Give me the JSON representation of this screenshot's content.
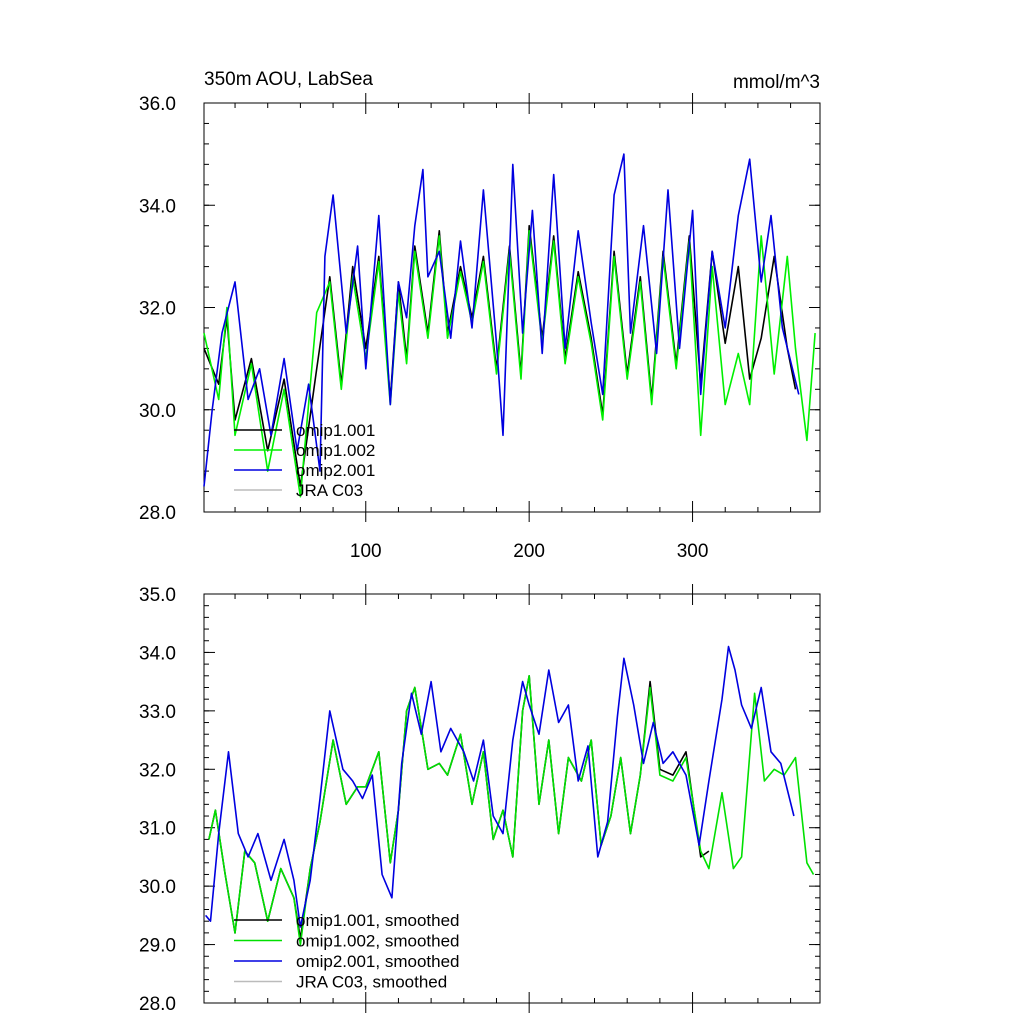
{
  "chart_data": [
    {
      "type": "line",
      "title": "350m AOU, LabSea",
      "units": "mmol/m^3",
      "xlim": [
        1,
        378
      ],
      "ylim": [
        28.0,
        36.0
      ],
      "xticks": [
        100,
        200,
        300
      ],
      "xtick_labels": [
        "100",
        "200",
        "300"
      ],
      "yticks": [
        28.0,
        30.0,
        32.0,
        34.0,
        36.0
      ],
      "ytick_labels": [
        "28.0",
        "30.0",
        "32.0",
        "34.0",
        "36.0"
      ],
      "legend": [
        "omip1.001",
        "omip1.002",
        "omip2.001",
        "JRA C03"
      ],
      "series": [
        {
          "name": "omip1.001",
          "color": "#000000",
          "x": [
            1,
            10,
            15,
            20,
            30,
            40,
            50,
            60,
            70,
            78,
            85,
            92,
            100,
            108,
            115,
            120,
            125,
            130,
            138,
            145,
            150,
            158,
            165,
            172,
            180,
            188,
            195,
            200,
            208,
            215,
            222,
            230,
            238,
            245,
            252,
            260,
            268,
            275,
            282,
            290,
            298,
            305,
            312,
            320,
            328,
            335,
            342,
            350,
            358,
            363
          ],
          "values": [
            31.2,
            30.5,
            31.8,
            29.8,
            31.0,
            29.2,
            30.6,
            28.5,
            30.8,
            32.6,
            30.5,
            32.8,
            31.2,
            33.0,
            30.2,
            32.5,
            31.0,
            33.2,
            31.5,
            33.5,
            31.5,
            32.8,
            31.8,
            33.0,
            30.8,
            33.2,
            30.7,
            33.6,
            31.4,
            33.4,
            31.0,
            32.7,
            31.4,
            29.9,
            33.1,
            30.7,
            32.6,
            30.2,
            33.1,
            30.9,
            33.4,
            30.5,
            33.1,
            31.3,
            32.8,
            30.6,
            31.4,
            33.0,
            31.2,
            30.4
          ]
        },
        {
          "name": "omip1.002",
          "color": "#00f000",
          "x": [
            1,
            10,
            15,
            20,
            30,
            40,
            50,
            60,
            70,
            78,
            85,
            92,
            100,
            108,
            115,
            120,
            125,
            130,
            138,
            145,
            150,
            158,
            165,
            172,
            180,
            188,
            195,
            200,
            208,
            215,
            222,
            230,
            238,
            245,
            252,
            260,
            268,
            275,
            282,
            290,
            298,
            305,
            312,
            320,
            328,
            335,
            342,
            350,
            358,
            363,
            370,
            375
          ],
          "values": [
            31.5,
            30.2,
            32.0,
            29.5,
            30.9,
            28.8,
            30.4,
            28.3,
            31.9,
            32.5,
            30.4,
            32.6,
            31.0,
            32.9,
            30.1,
            32.3,
            30.9,
            33.1,
            31.4,
            33.4,
            31.4,
            32.7,
            31.7,
            32.9,
            30.7,
            33.1,
            30.6,
            33.5,
            31.3,
            33.3,
            30.9,
            32.6,
            31.3,
            29.8,
            33.0,
            30.6,
            32.5,
            30.1,
            33.0,
            30.8,
            33.3,
            29.5,
            32.8,
            30.1,
            31.1,
            30.1,
            33.4,
            30.7,
            33.0,
            31.2,
            29.4,
            31.5
          ]
        },
        {
          "name": "omip2.001",
          "color": "#0000e0",
          "x": [
            1,
            6,
            12,
            20,
            28,
            35,
            42,
            50,
            58,
            65,
            72,
            75,
            80,
            88,
            95,
            100,
            108,
            115,
            120,
            125,
            130,
            135,
            138,
            145,
            152,
            158,
            165,
            172,
            180,
            184,
            190,
            196,
            202,
            208,
            215,
            222,
            230,
            238,
            245,
            252,
            258,
            262,
            270,
            278,
            285,
            292,
            300,
            305,
            312,
            320,
            328,
            335,
            342,
            348,
            355,
            365
          ],
          "values": [
            28.5,
            30.0,
            31.5,
            32.5,
            30.2,
            30.8,
            29.5,
            31.0,
            29.2,
            30.5,
            28.8,
            33.0,
            34.2,
            31.5,
            33.2,
            30.8,
            33.8,
            30.1,
            32.5,
            31.8,
            33.6,
            34.7,
            32.6,
            33.1,
            31.4,
            33.3,
            31.6,
            34.3,
            31.3,
            29.5,
            34.8,
            31.5,
            33.9,
            31.1,
            34.6,
            31.2,
            33.5,
            31.7,
            30.3,
            34.2,
            35.0,
            31.5,
            33.6,
            31.1,
            34.3,
            31.2,
            33.9,
            30.3,
            33.1,
            31.6,
            33.8,
            34.9,
            32.5,
            33.8,
            31.6,
            30.3
          ]
        },
        {
          "name": "JRA C03",
          "color": "#bbbbbb",
          "x": [],
          "values": []
        }
      ]
    },
    {
      "type": "line",
      "title": "",
      "units": "",
      "xlim": [
        1,
        378
      ],
      "ylim": [
        28.0,
        35.0
      ],
      "xticks": [
        100,
        200,
        300
      ],
      "xtick_labels": [
        "",
        "",
        ""
      ],
      "yticks": [
        28.0,
        29.0,
        30.0,
        31.0,
        32.0,
        33.0,
        34.0,
        35.0
      ],
      "ytick_labels": [
        "28.0",
        "29.0",
        "30.0",
        "31.0",
        "32.0",
        "33.0",
        "34.0",
        "35.0"
      ],
      "legend": [
        "omip1.001, smoothed",
        "omip1.002, smoothed",
        "omip2.001, smoothed",
        "JRA C03, smoothed"
      ],
      "series": [
        {
          "name": "omip1.001, smoothed",
          "color": "#000000",
          "x": [
            4,
            8,
            14,
            20,
            26,
            32,
            40,
            48,
            56,
            60,
            66,
            72,
            80,
            88,
            95,
            100,
            108,
            115,
            120,
            125,
            130,
            138,
            145,
            150,
            158,
            165,
            172,
            178,
            184,
            190,
            196,
            200,
            206,
            212,
            218,
            224,
            232,
            238,
            244,
            250,
            256,
            262,
            268,
            274,
            280,
            288,
            296,
            305,
            310
          ],
          "values": [
            30.8,
            31.3,
            30.2,
            29.2,
            30.6,
            30.4,
            29.4,
            30.3,
            29.8,
            29.1,
            30.3,
            31.1,
            32.5,
            31.4,
            31.7,
            31.7,
            32.3,
            30.4,
            31.3,
            33.0,
            33.4,
            32.0,
            32.1,
            31.9,
            32.6,
            31.4,
            32.3,
            30.8,
            31.3,
            30.5,
            33.0,
            33.6,
            31.4,
            32.5,
            30.9,
            32.2,
            31.8,
            32.5,
            30.7,
            31.2,
            32.2,
            30.9,
            31.9,
            33.5,
            32.0,
            31.9,
            32.3,
            30.5,
            30.6
          ]
        },
        {
          "name": "omip1.002, smoothed",
          "color": "#00e000",
          "x": [
            4,
            8,
            14,
            20,
            26,
            32,
            40,
            48,
            56,
            60,
            66,
            72,
            80,
            88,
            95,
            100,
            108,
            115,
            120,
            125,
            130,
            138,
            145,
            150,
            158,
            165,
            172,
            178,
            184,
            190,
            196,
            200,
            206,
            212,
            218,
            224,
            232,
            238,
            244,
            250,
            256,
            262,
            268,
            274,
            280,
            288,
            296,
            305,
            310,
            318,
            325,
            330,
            338,
            344,
            350,
            356,
            363,
            370,
            374
          ],
          "values": [
            30.8,
            31.3,
            30.2,
            29.2,
            30.6,
            30.4,
            29.4,
            30.3,
            29.8,
            29.0,
            30.3,
            31.1,
            32.5,
            31.4,
            31.7,
            31.7,
            32.3,
            30.4,
            31.3,
            33.0,
            33.4,
            32.0,
            32.1,
            31.9,
            32.6,
            31.4,
            32.3,
            30.8,
            31.3,
            30.5,
            33.0,
            33.6,
            31.4,
            32.5,
            30.9,
            32.2,
            31.8,
            32.5,
            30.7,
            31.2,
            32.2,
            30.9,
            31.9,
            33.4,
            31.9,
            31.8,
            32.2,
            30.6,
            30.3,
            31.6,
            30.3,
            30.5,
            33.3,
            31.8,
            32.0,
            31.9,
            32.2,
            30.4,
            30.2
          ]
        },
        {
          "name": "omip2.001, smoothed",
          "color": "#0000e0",
          "x": [
            2,
            5,
            10,
            16,
            22,
            28,
            34,
            42,
            50,
            56,
            60,
            66,
            72,
            78,
            86,
            92,
            98,
            104,
            110,
            116,
            122,
            128,
            134,
            140,
            146,
            152,
            160,
            166,
            172,
            178,
            184,
            190,
            196,
            200,
            206,
            212,
            218,
            224,
            230,
            236,
            242,
            248,
            254,
            258,
            264,
            270,
            276,
            282,
            288,
            296,
            304,
            310,
            318,
            322,
            326,
            330,
            336,
            342,
            348,
            354,
            362
          ],
          "values": [
            29.5,
            29.4,
            30.9,
            32.3,
            30.9,
            30.5,
            30.9,
            30.1,
            30.8,
            30.1,
            29.3,
            30.1,
            31.5,
            33.0,
            32.0,
            31.8,
            31.5,
            31.9,
            30.2,
            29.8,
            32.1,
            33.3,
            32.6,
            33.5,
            32.3,
            32.7,
            32.3,
            31.8,
            32.5,
            31.2,
            30.9,
            32.5,
            33.5,
            33.1,
            32.6,
            33.7,
            32.8,
            33.1,
            31.8,
            32.4,
            30.5,
            31.1,
            32.9,
            33.9,
            33.1,
            32.1,
            32.8,
            32.1,
            32.3,
            31.9,
            30.7,
            31.8,
            33.2,
            34.1,
            33.7,
            33.1,
            32.7,
            33.4,
            32.3,
            32.1,
            31.2
          ]
        },
        {
          "name": "JRA C03, smoothed",
          "color": "#bbbbbb",
          "x": [],
          "values": []
        }
      ]
    }
  ]
}
